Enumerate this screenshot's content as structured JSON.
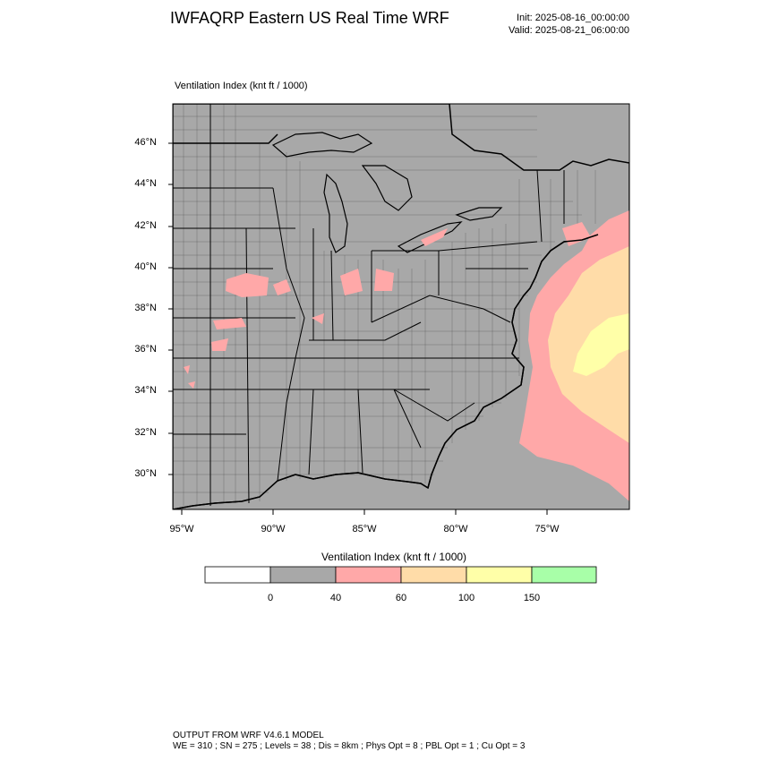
{
  "header": {
    "title": "IWFAQRP Eastern US Real Time WRF",
    "init_line": "Init: 2025-08-16_00:00:00",
    "valid_line": "Valid: 2025-08-21_06:00:00"
  },
  "panel": {
    "label": "Ventilation Index   (knt ft / 1000)"
  },
  "map": {
    "lat_ticks": [
      "46°N",
      "44°N",
      "42°N",
      "40°N",
      "38°N",
      "36°N",
      "34°N",
      "32°N",
      "30°N"
    ],
    "lon_ticks": [
      "95°W",
      "90°W",
      "85°W",
      "80°W",
      "75°W"
    ],
    "land_fill_color": "#a8a8a8",
    "boundary_color": "#000000"
  },
  "legend": {
    "title": "Ventilation Index  (knt ft / 1000)",
    "bins": [
      {
        "color": "#ffffff"
      },
      {
        "color": "#a8a8a8"
      },
      {
        "color": "#ffa8a8"
      },
      {
        "color": "#ffdca8"
      },
      {
        "color": "#ffffa8"
      },
      {
        "color": "#a8ffa8"
      }
    ],
    "tick_labels": [
      "0",
      "40",
      "60",
      "100",
      "150"
    ]
  },
  "footer": {
    "line1": "OUTPUT FROM WRF V4.6.1 MODEL",
    "line2": "WE = 310 ; SN = 275 ; Levels = 38 ; Dis = 8km ; Phys Opt = 8 ; PBL Opt = 1 ; Cu Opt = 3"
  }
}
